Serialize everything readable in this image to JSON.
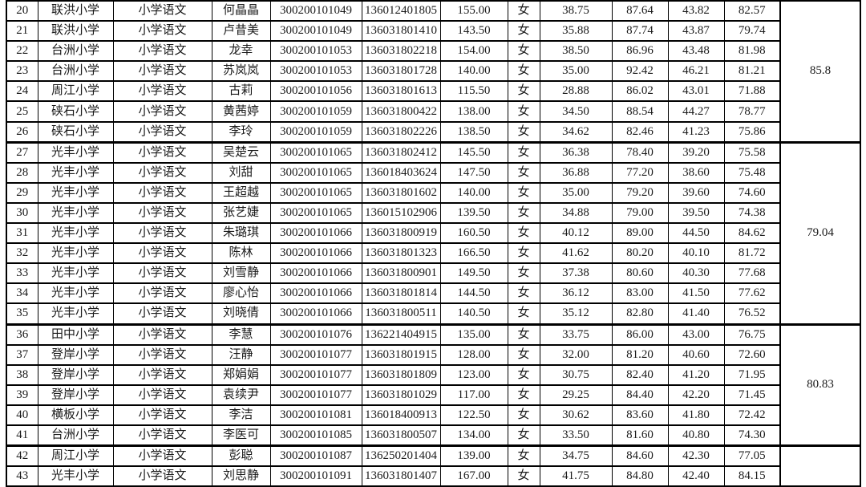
{
  "page": {
    "background_color": "#ffffff",
    "text_color": "#1a1a1a",
    "border_color": "#000000"
  },
  "table": {
    "column_keys": [
      "row_number",
      "school",
      "subject",
      "name",
      "position_code",
      "exam_number",
      "written_score",
      "gender",
      "written_converted",
      "interview_score",
      "interview_converted",
      "total_score"
    ],
    "cutoff_column_key": "group_cutoff",
    "rows": [
      [
        "20",
        "联洪小学",
        "小学语文",
        "何晶晶",
        "300200101049",
        "136012401805",
        "155.00",
        "女",
        "38.75",
        "87.64",
        "43.82",
        "82.57"
      ],
      [
        "21",
        "联洪小学",
        "小学语文",
        "卢昔美",
        "300200101049",
        "136031801410",
        "143.50",
        "女",
        "35.88",
        "87.74",
        "43.87",
        "79.74"
      ],
      [
        "22",
        "台洲小学",
        "小学语文",
        "龙幸",
        "300200101053",
        "136031802218",
        "154.00",
        "女",
        "38.50",
        "86.96",
        "43.48",
        "81.98"
      ],
      [
        "23",
        "台洲小学",
        "小学语文",
        "苏岚岚",
        "300200101053",
        "136031801728",
        "140.00",
        "女",
        "35.00",
        "92.42",
        "46.21",
        "81.21"
      ],
      [
        "24",
        "周江小学",
        "小学语文",
        "古莉",
        "300200101056",
        "136031801613",
        "115.50",
        "女",
        "28.88",
        "86.02",
        "43.01",
        "71.88"
      ],
      [
        "25",
        "硖石小学",
        "小学语文",
        "黄茜婷",
        "300200101059",
        "136031800422",
        "138.00",
        "女",
        "34.50",
        "88.54",
        "44.27",
        "78.77"
      ],
      [
        "26",
        "硖石小学",
        "小学语文",
        "李玲",
        "300200101059",
        "136031802226",
        "138.50",
        "女",
        "34.62",
        "82.46",
        "41.23",
        "75.86"
      ],
      [
        "27",
        "光丰小学",
        "小学语文",
        "吴楚云",
        "300200101065",
        "136031802412",
        "145.50",
        "女",
        "36.38",
        "78.40",
        "39.20",
        "75.58"
      ],
      [
        "28",
        "光丰小学",
        "小学语文",
        "刘甜",
        "300200101065",
        "136018403624",
        "147.50",
        "女",
        "36.88",
        "77.20",
        "38.60",
        "75.48"
      ],
      [
        "29",
        "光丰小学",
        "小学语文",
        "王超越",
        "300200101065",
        "136031801602",
        "140.00",
        "女",
        "35.00",
        "79.20",
        "39.60",
        "74.60"
      ],
      [
        "30",
        "光丰小学",
        "小学语文",
        "张艺婕",
        "300200101065",
        "136015102906",
        "139.50",
        "女",
        "34.88",
        "79.00",
        "39.50",
        "74.38"
      ],
      [
        "31",
        "光丰小学",
        "小学语文",
        "朱璐琪",
        "300200101066",
        "136031800919",
        "160.50",
        "女",
        "40.12",
        "89.00",
        "44.50",
        "84.62"
      ],
      [
        "32",
        "光丰小学",
        "小学语文",
        "陈林",
        "300200101066",
        "136031801323",
        "166.50",
        "女",
        "41.62",
        "80.20",
        "40.10",
        "81.72"
      ],
      [
        "33",
        "光丰小学",
        "小学语文",
        "刘雪静",
        "300200101066",
        "136031800901",
        "149.50",
        "女",
        "37.38",
        "80.60",
        "40.30",
        "77.68"
      ],
      [
        "34",
        "光丰小学",
        "小学语文",
        "廖心怡",
        "300200101066",
        "136031801814",
        "144.50",
        "女",
        "36.12",
        "83.00",
        "41.50",
        "77.62"
      ],
      [
        "35",
        "光丰小学",
        "小学语文",
        "刘晓倩",
        "300200101066",
        "136031800511",
        "140.50",
        "女",
        "35.12",
        "82.80",
        "41.40",
        "76.52"
      ],
      [
        "36",
        "田中小学",
        "小学语文",
        "李慧",
        "300200101076",
        "136221404915",
        "135.00",
        "女",
        "33.75",
        "86.00",
        "43.00",
        "76.75"
      ],
      [
        "37",
        "登岸小学",
        "小学语文",
        "汪静",
        "300200101077",
        "136031801915",
        "128.00",
        "女",
        "32.00",
        "81.20",
        "40.60",
        "72.60"
      ],
      [
        "38",
        "登岸小学",
        "小学语文",
        "郑娟娟",
        "300200101077",
        "136031801809",
        "123.00",
        "女",
        "30.75",
        "82.40",
        "41.20",
        "71.95"
      ],
      [
        "39",
        "登岸小学",
        "小学语文",
        "袁续尹",
        "300200101077",
        "136031801029",
        "117.00",
        "女",
        "29.25",
        "84.40",
        "42.20",
        "71.45"
      ],
      [
        "40",
        "横板小学",
        "小学语文",
        "李洁",
        "300200101081",
        "136018400913",
        "122.50",
        "女",
        "30.62",
        "83.60",
        "41.80",
        "72.42"
      ],
      [
        "41",
        "台洲小学",
        "小学语文",
        "李医可",
        "300200101085",
        "136031800507",
        "134.00",
        "女",
        "33.50",
        "81.60",
        "40.80",
        "74.30"
      ],
      [
        "42",
        "周江小学",
        "小学语文",
        "彭聪",
        "300200101087",
        "136250201404",
        "139.00",
        "女",
        "34.75",
        "84.60",
        "42.30",
        "77.05"
      ],
      [
        "43",
        "光丰小学",
        "小学语文",
        "刘思静",
        "300200101091",
        "136031801407",
        "167.00",
        "女",
        "41.75",
        "84.80",
        "42.40",
        "84.15"
      ]
    ],
    "groups": [
      {
        "start_row_number": "20",
        "end_row_number": "26",
        "row_span": 7,
        "cutoff": "85.8"
      },
      {
        "start_row_number": "27",
        "end_row_number": "35",
        "row_span": 9,
        "cutoff": "79.04"
      },
      {
        "start_row_number": "36",
        "end_row_number": "41",
        "row_span": 6,
        "cutoff": "80.83"
      },
      {
        "start_row_number": "42",
        "end_row_number": "43",
        "row_span": 2,
        "cutoff": ""
      }
    ]
  }
}
